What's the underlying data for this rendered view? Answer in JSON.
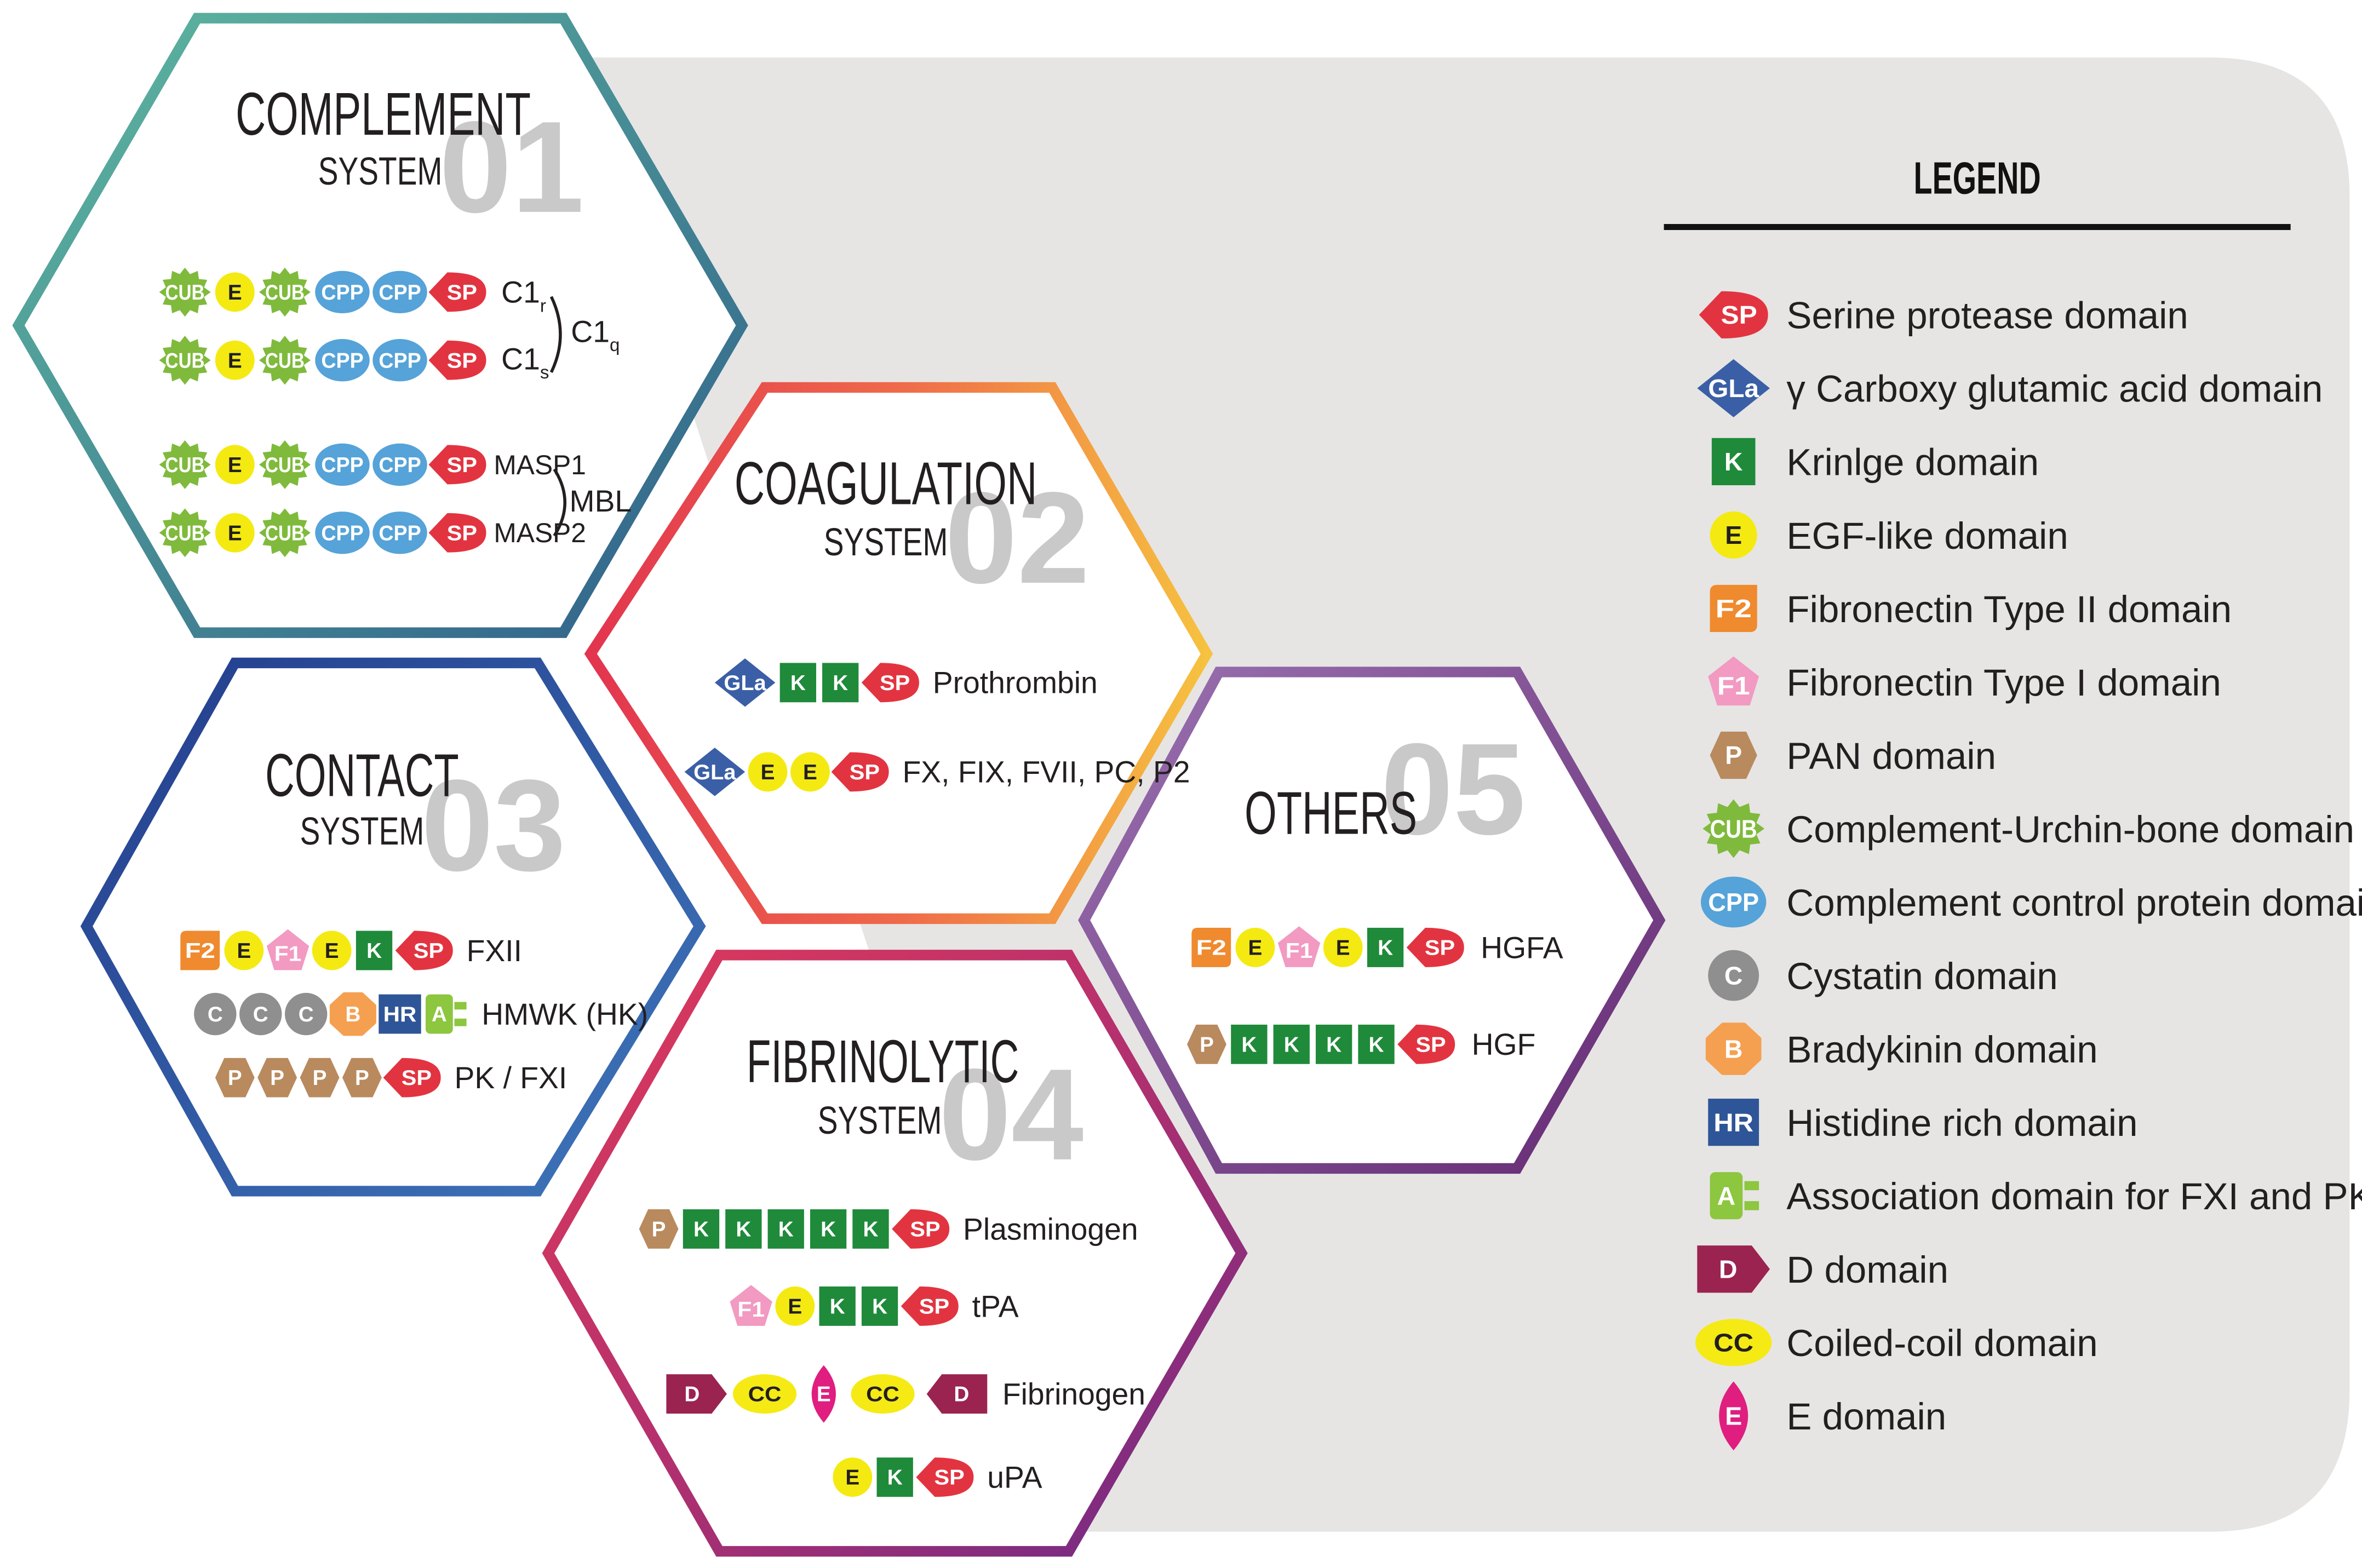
{
  "colors": {
    "panel_bg": "#e6e5e4",
    "sp_red": "#e23440",
    "gla_blue": "#3a5fa6",
    "kringle_green": "#1f8a3a",
    "egf_yellow": "#f4ea12",
    "f2_orange": "#ef8a2f",
    "f1_pink": "#f29ac1",
    "pan_tan": "#b88a5e",
    "cub_green": "#7fba3c",
    "cpp_blue": "#55a3d8",
    "cystatin_gray": "#8f8f8f",
    "bradykinin_orange": "#f5a051",
    "hr_navy": "#2e5597",
    "assoc_green": "#8dc63f",
    "d_maroon": "#9b2350",
    "cc_yellow": "#f5ea14",
    "e_magenta": "#e01e7f",
    "number_gray": "#c9c9c9"
  },
  "domain_labels": {
    "SP": "SP",
    "GLa": "GLa",
    "K": "K",
    "E": "E",
    "F2": "F2",
    "F1": "F1",
    "P": "P",
    "CUB": "CUB",
    "CPP": "CPP",
    "C": "C",
    "B": "B",
    "HR": "HR",
    "A": "A",
    "D": "D",
    "CC": "CC"
  },
  "hexagons": {
    "complement": {
      "title": "COMPLEMENT",
      "subtitle": "SYSTEM",
      "number": "01",
      "rows": [
        {
          "domains": [
            "CUB",
            "E",
            "CUB",
            "CPP",
            "CPP",
            "SP"
          ]
        },
        {
          "domains": [
            "CUB",
            "E",
            "CUB",
            "CPP",
            "CPP",
            "SP"
          ]
        },
        {
          "domains": [
            "CUB",
            "E",
            "CUB",
            "CPP",
            "CPP",
            "SP"
          ],
          "label": "MASP1"
        },
        {
          "domains": [
            "CUB",
            "E",
            "CUB",
            "CPP",
            "CPP",
            "SP"
          ],
          "label": "MASP2"
        }
      ],
      "c1r_main": "C1",
      "c1r_sub": "r",
      "c1s_main": "C1",
      "c1s_sub": "s",
      "c1q_main": "C1",
      "c1q_sub": "q",
      "mbl": "MBL"
    },
    "coagulation": {
      "title": "COAGULATION",
      "subtitle": "SYSTEM",
      "number": "02",
      "rows": [
        {
          "domains": [
            "GLa",
            "K",
            "K",
            "SP"
          ],
          "label": "Prothrombin"
        },
        {
          "domains": [
            "GLa",
            "E",
            "E",
            "SP"
          ],
          "label": "FX, FIX, FVII, PC, P2"
        }
      ]
    },
    "contact": {
      "title": "CONTACT",
      "subtitle": "SYSTEM",
      "number": "03",
      "rows": [
        {
          "domains": [
            "F2",
            "E",
            "F1",
            "E",
            "K",
            "SP"
          ],
          "label": "FXII"
        },
        {
          "domains": [
            "C",
            "C",
            "C",
            "B",
            "HR",
            "A"
          ],
          "label": "HMWK (HK)"
        },
        {
          "domains": [
            "P",
            "P",
            "P",
            "P",
            "SP"
          ],
          "label": "PK / FXI"
        }
      ]
    },
    "fibrinolytic": {
      "title": "FIBRINOLYTIC",
      "subtitle": "SYSTEM",
      "number": "04",
      "rows": [
        {
          "domains": [
            "P",
            "K",
            "K",
            "K",
            "K",
            "K",
            "SP"
          ],
          "label": "Plasminogen"
        },
        {
          "domains": [
            "F1",
            "E",
            "K",
            "K",
            "SP"
          ],
          "label": "tPA"
        },
        {
          "domains": [
            "D",
            "CC",
            "Emag",
            "CC",
            "Dr"
          ],
          "label": "Fibrinogen"
        },
        {
          "domains": [
            "E",
            "K",
            "SP"
          ],
          "label": "uPA"
        }
      ]
    },
    "others": {
      "title": "OTHERS",
      "number": "05",
      "rows": [
        {
          "domains": [
            "F2",
            "E",
            "F1",
            "E",
            "K",
            "SP"
          ],
          "label": "HGFA"
        },
        {
          "domains": [
            "P",
            "K",
            "K",
            "K",
            "K",
            "SP"
          ],
          "label": "HGF"
        }
      ]
    }
  },
  "legend": {
    "title": "LEGEND",
    "items": [
      {
        "type": "SP",
        "label": "Serine protease domain"
      },
      {
        "type": "GLa",
        "label": "γ Carboxy glutamic acid domain"
      },
      {
        "type": "K",
        "label": "Krinlge domain"
      },
      {
        "type": "E",
        "label": "EGF-like domain"
      },
      {
        "type": "F2",
        "label": "Fibronectin Type II domain"
      },
      {
        "type": "F1",
        "label": "Fibronectin Type I domain"
      },
      {
        "type": "P",
        "label": "PAN domain"
      },
      {
        "type": "CUB",
        "label": "Complement-Urchin-bone domain"
      },
      {
        "type": "CPP",
        "label": "Complement control protein domain"
      },
      {
        "type": "C",
        "label": "Cystatin domain"
      },
      {
        "type": "B",
        "label": "Bradykinin domain"
      },
      {
        "type": "HR",
        "label": "Histidine rich domain"
      },
      {
        "type": "A",
        "label": "Association domain for FXI and PK"
      },
      {
        "type": "D",
        "label": "D domain"
      },
      {
        "type": "CC",
        "label": "Coiled-coil domain"
      },
      {
        "type": "Emag",
        "label": "E domain"
      }
    ]
  }
}
